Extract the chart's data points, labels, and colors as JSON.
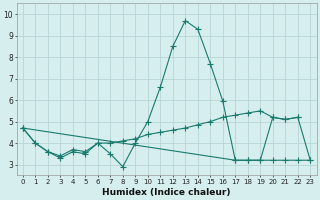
{
  "xlabel": "Humidex (Indice chaleur)",
  "background_color": "#d6eeee",
  "grid_color": "#b8d4d4",
  "line_color": "#1a7a6e",
  "xlim": [
    -0.5,
    23.5
  ],
  "ylim": [
    2.5,
    10.5
  ],
  "yticks": [
    3,
    4,
    5,
    6,
    7,
    8,
    9,
    10
  ],
  "xticks": [
    0,
    1,
    2,
    3,
    4,
    5,
    6,
    7,
    8,
    9,
    10,
    11,
    12,
    13,
    14,
    15,
    16,
    17,
    18,
    19,
    20,
    21,
    22,
    23
  ],
  "line1_x": [
    0,
    1,
    2,
    3,
    4,
    5,
    6,
    7,
    8,
    9,
    10,
    11,
    12,
    13,
    14,
    15,
    16,
    17,
    18,
    19,
    20,
    21,
    22,
    23
  ],
  "line1_y": [
    4.7,
    4.0,
    3.6,
    3.3,
    3.6,
    3.5,
    4.0,
    3.5,
    2.9,
    4.0,
    5.0,
    6.6,
    8.5,
    9.7,
    9.3,
    7.7,
    5.95,
    3.2,
    3.2,
    3.2,
    5.2,
    5.1,
    5.2,
    3.2
  ],
  "line2_x": [
    0,
    1,
    2,
    3,
    4,
    5,
    6,
    7,
    8,
    9,
    10,
    11,
    12,
    13,
    14,
    15,
    16,
    17,
    18,
    19,
    20,
    21,
    22
  ],
  "line2_y": [
    4.7,
    4.0,
    3.6,
    3.4,
    3.7,
    3.6,
    4.0,
    4.0,
    4.1,
    4.2,
    4.4,
    4.5,
    4.6,
    4.7,
    4.85,
    5.0,
    5.2,
    5.3,
    5.4,
    5.5,
    5.2,
    5.1,
    5.2
  ],
  "line3_x": [
    0,
    17,
    18,
    19,
    20,
    21,
    22,
    23
  ],
  "line3_y": [
    4.7,
    3.2,
    3.2,
    3.2,
    3.2,
    3.2,
    3.2,
    3.2
  ],
  "marker": "+",
  "marker_size": 4,
  "line_width": 0.8
}
